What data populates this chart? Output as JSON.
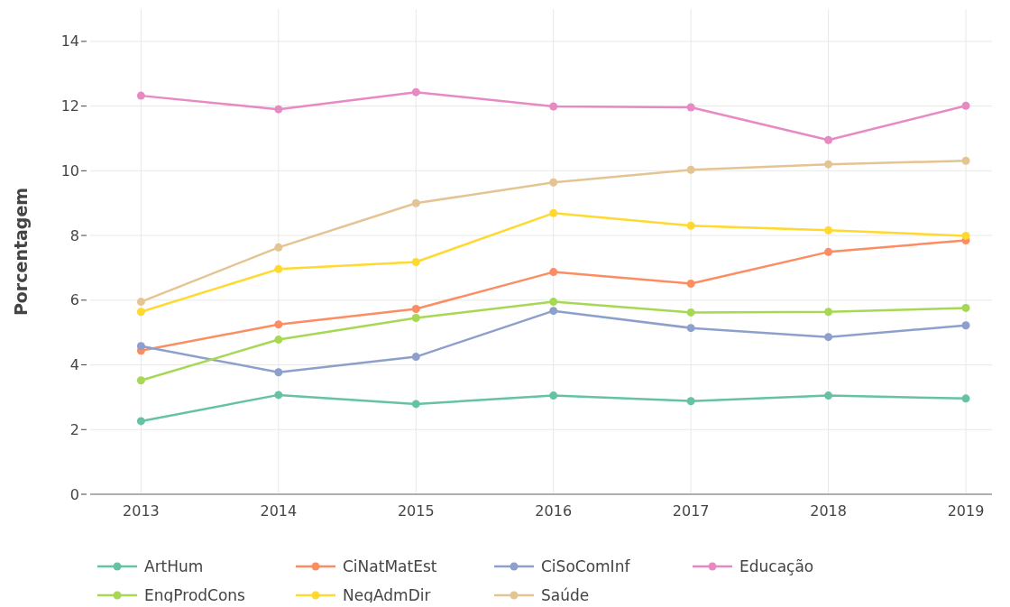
{
  "chart_data": {
    "type": "line",
    "ylabel": "Porcentagem",
    "x": [
      2013,
      2014,
      2015,
      2016,
      2017,
      2018,
      2019
    ],
    "xlim": [
      2012.63,
      2019.19
    ],
    "xticks": [
      2013,
      2014,
      2015,
      2016,
      2017,
      2018,
      2019
    ],
    "ylim": [
      0,
      15
    ],
    "yticks": [
      0,
      2,
      4,
      6,
      8,
      10,
      12,
      14
    ],
    "grid": true,
    "legend": "bottom",
    "marker": "circle",
    "line_style": "solid",
    "series": [
      {
        "name": "ArtHum",
        "color": "#66c2a5",
        "values": [
          2.26,
          3.07,
          2.79,
          3.05,
          2.88,
          3.05,
          2.96
        ]
      },
      {
        "name": "CiNatMatEst",
        "color": "#fc8d62",
        "values": [
          4.44,
          5.25,
          5.73,
          6.87,
          6.51,
          7.49,
          7.85
        ]
      },
      {
        "name": "CiSoComInf",
        "color": "#8da0cb",
        "values": [
          4.58,
          3.77,
          4.25,
          5.67,
          5.14,
          4.86,
          5.22
        ]
      },
      {
        "name": "Educação",
        "color": "#e78ac3",
        "values": [
          12.32,
          11.9,
          12.43,
          11.99,
          11.96,
          10.95,
          12.01
        ]
      },
      {
        "name": "EngProdCons",
        "color": "#a6d854",
        "values": [
          3.52,
          4.78,
          5.45,
          5.95,
          5.62,
          5.64,
          5.76
        ]
      },
      {
        "name": "NegAdmDir",
        "color": "#ffd92f",
        "values": [
          5.64,
          6.96,
          7.18,
          8.69,
          8.3,
          8.16,
          7.99
        ]
      },
      {
        "name": "Saúde",
        "color": "#e5c494",
        "values": [
          5.95,
          7.63,
          9.0,
          9.64,
          10.03,
          10.2,
          10.31
        ]
      }
    ]
  }
}
